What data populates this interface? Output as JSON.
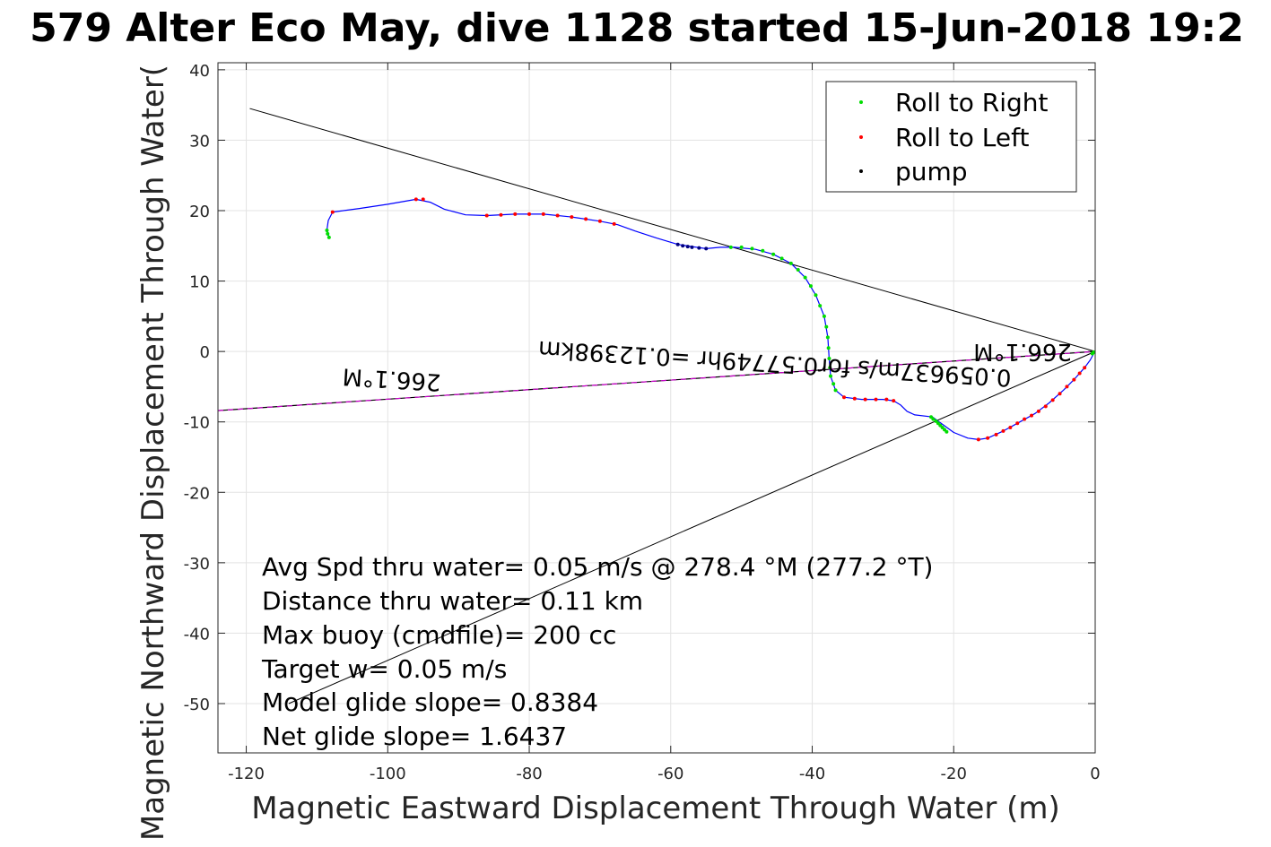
{
  "chart_data": {
    "type": "scatter",
    "title": "579 Alter Eco May, dive 1128 started 15-Jun-2018 19:2",
    "xlabel": "Magnetic Eastward Displacement Through Water (m)",
    "ylabel": "Magnetic Northward Displacement Through Water(",
    "xlim": [
      -124,
      0
    ],
    "ylim": [
      -57,
      41
    ],
    "xticks": [
      -120,
      -100,
      -80,
      -60,
      -40,
      -20,
      0
    ],
    "yticks": [
      40,
      30,
      20,
      10,
      0,
      -10,
      -20,
      -30,
      -40,
      -50
    ],
    "grid": true,
    "legend_position": "top-right",
    "colors": {
      "track": "#0000ff",
      "roll_right": "#00dd00",
      "roll_left": "#ff0000",
      "pump": "#000080",
      "heading_line": "#cc00cc",
      "guide": "#000000"
    },
    "legend": [
      "Roll to Right",
      "Roll to Left",
      "pump"
    ],
    "track": [
      [
        -108.3,
        16.2
      ],
      [
        -108.6,
        17.3
      ],
      [
        -108.4,
        18.6
      ],
      [
        -107.8,
        19.8
      ],
      [
        -104,
        20.3
      ],
      [
        -100,
        20.9
      ],
      [
        -96,
        21.6
      ],
      [
        -94,
        21.2
      ],
      [
        -92,
        20.2
      ],
      [
        -89,
        19.4
      ],
      [
        -86,
        19.3
      ],
      [
        -82,
        19.5
      ],
      [
        -78,
        19.5
      ],
      [
        -74,
        19.1
      ],
      [
        -70,
        18.5
      ],
      [
        -67.5,
        18.0
      ],
      [
        -65,
        17.1
      ],
      [
        -62,
        16.1
      ],
      [
        -59,
        15.2
      ],
      [
        -57,
        14.9
      ],
      [
        -55,
        14.6
      ],
      [
        -53,
        14.8
      ],
      [
        -51,
        14.8
      ],
      [
        -48,
        14.5
      ],
      [
        -45.5,
        13.8
      ],
      [
        -43,
        12.5
      ],
      [
        -41,
        10.5
      ],
      [
        -39.5,
        8
      ],
      [
        -38.3,
        5
      ],
      [
        -37.8,
        2
      ],
      [
        -37.6,
        -1
      ],
      [
        -37.4,
        -3.5
      ],
      [
        -36.7,
        -5.5
      ],
      [
        -35.5,
        -6.5
      ],
      [
        -33,
        -6.8
      ],
      [
        -30,
        -6.8
      ],
      [
        -28.5,
        -7
      ],
      [
        -27.5,
        -7.6
      ],
      [
        -26.6,
        -8.5
      ],
      [
        -25.5,
        -9
      ],
      [
        -23,
        -9.3
      ],
      [
        -21.5,
        -10.4
      ],
      [
        -20,
        -11.5
      ],
      [
        -18,
        -12.3
      ],
      [
        -16.5,
        -12.5
      ],
      [
        -15.2,
        -12.3
      ],
      [
        -13,
        -11.3
      ],
      [
        -11,
        -10.2
      ],
      [
        -8.5,
        -8.8
      ],
      [
        -6.5,
        -7.3
      ],
      [
        -4.5,
        -5.5
      ],
      [
        -3,
        -4
      ],
      [
        -1.5,
        -2.3
      ],
      [
        -0.7,
        -1.2
      ],
      [
        -0.1,
        -0.1
      ]
    ],
    "roll_right_points": [
      [
        -108.3,
        16.2
      ],
      [
        -108.5,
        16.7
      ],
      [
        -108.6,
        17.2
      ],
      [
        -51.5,
        14.8
      ],
      [
        -50,
        14.8
      ],
      [
        -48.5,
        14.6
      ],
      [
        -47,
        14.3
      ],
      [
        -45.5,
        13.8
      ],
      [
        -44.3,
        13.2
      ],
      [
        -43,
        12.5
      ],
      [
        -42,
        11.6
      ],
      [
        -41,
        10.5
      ],
      [
        -40.2,
        9.3
      ],
      [
        -39.5,
        8
      ],
      [
        -38.9,
        6.5
      ],
      [
        -38.3,
        5
      ],
      [
        -38,
        3.5
      ],
      [
        -37.8,
        2
      ],
      [
        -37.7,
        0.5
      ],
      [
        -37.6,
        -1
      ],
      [
        -37.5,
        -2.3
      ],
      [
        -37.4,
        -3.5
      ],
      [
        -37,
        -4.6
      ],
      [
        -36.7,
        -5.5
      ],
      [
        -23.2,
        -9.3
      ],
      [
        -22.9,
        -9.6
      ],
      [
        -22.5,
        -9.9
      ],
      [
        -22.2,
        -10.2
      ],
      [
        -21.9,
        -10.5
      ],
      [
        -21.6,
        -10.8
      ],
      [
        -21.3,
        -11.1
      ],
      [
        -21,
        -11.4
      ],
      [
        -0.4,
        -0.3
      ],
      [
        -0.2,
        -0.1
      ]
    ],
    "roll_left_points": [
      [
        -107.8,
        19.8
      ],
      [
        -96,
        21.6
      ],
      [
        -95,
        21.6
      ],
      [
        -86,
        19.3
      ],
      [
        -84,
        19.4
      ],
      [
        -82,
        19.5
      ],
      [
        -80,
        19.5
      ],
      [
        -78,
        19.5
      ],
      [
        -76,
        19.3
      ],
      [
        -74,
        19.1
      ],
      [
        -72,
        18.8
      ],
      [
        -70,
        18.5
      ],
      [
        -68,
        18.1
      ],
      [
        -35.5,
        -6.5
      ],
      [
        -34,
        -6.7
      ],
      [
        -32.5,
        -6.8
      ],
      [
        -31,
        -6.8
      ],
      [
        -29.5,
        -6.8
      ],
      [
        -28.5,
        -7.0
      ],
      [
        -16.5,
        -12.5
      ],
      [
        -15.2,
        -12.3
      ],
      [
        -14,
        -11.8
      ],
      [
        -13,
        -11.3
      ],
      [
        -12,
        -10.8
      ],
      [
        -11,
        -10.2
      ],
      [
        -10,
        -9.6
      ],
      [
        -9,
        -9.1
      ],
      [
        -8,
        -8.5
      ],
      [
        -7,
        -7.8
      ],
      [
        -6,
        -6.9
      ],
      [
        -5,
        -6.0
      ],
      [
        -4,
        -5.0
      ],
      [
        -3,
        -4
      ],
      [
        -2.2,
        -3.1
      ],
      [
        -1.5,
        -2.3
      ]
    ],
    "pump_points": [
      [
        -59,
        15.2
      ],
      [
        -58.3,
        15
      ],
      [
        -57.6,
        14.9
      ],
      [
        -57,
        14.8
      ],
      [
        -56,
        14.7
      ],
      [
        -55,
        14.6
      ]
    ],
    "guide_lines": [
      [
        [
          -119.5,
          34.5
        ],
        [
          0,
          0
        ]
      ],
      [
        [
          -114,
          -50
        ],
        [
          0,
          0
        ]
      ]
    ],
    "heading_line": [
      [
        -124,
        -8.4
      ],
      [
        0,
        0
      ]
    ],
    "annotations": {
      "heading_left": "266.1°M",
      "heading_right": "266.1°M",
      "speed_distance": "0.059637m/s for0.57749hr =0.12398km"
    },
    "info_lines": [
      "Avg Spd thru water=  0.05 m/s @ 278.4 °M (277.2 °T)",
      "Distance thru water=  0.11 km",
      "Max buoy (cmdfile)= 200 cc",
      "Target w= 0.05 m/s",
      "Model glide slope= 0.8384",
      "Net glide slope= 1.6437"
    ]
  }
}
